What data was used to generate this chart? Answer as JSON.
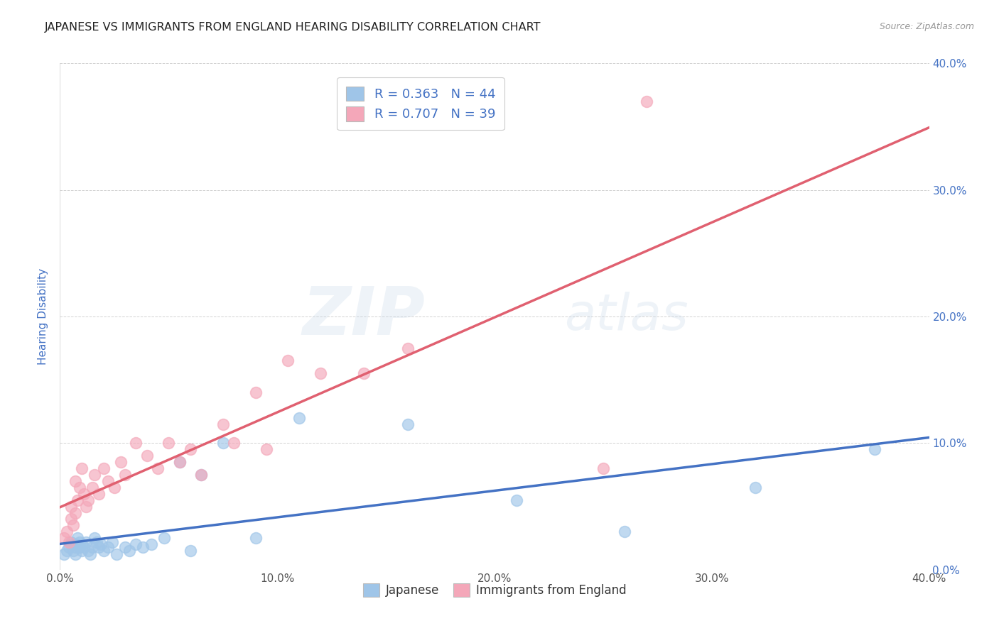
{
  "title": "JAPANESE VS IMMIGRANTS FROM ENGLAND HEARING DISABILITY CORRELATION CHART",
  "source": "Source: ZipAtlas.com",
  "ylabel": "Hearing Disability",
  "x_tick_labels": [
    "0.0%",
    "",
    "10.0%",
    "",
    "20.0%",
    "",
    "30.0%",
    "",
    "40.0%"
  ],
  "y_tick_labels_right": [
    "0.0%",
    "10.0%",
    "20.0%",
    "30.0%",
    "40.0%"
  ],
  "xlim": [
    0.0,
    0.4
  ],
  "ylim": [
    0.0,
    0.4
  ],
  "legend_label1": "Japanese",
  "legend_label2": "Immigrants from England",
  "r1": 0.363,
  "n1": 44,
  "r2": 0.707,
  "n2": 39,
  "color1": "#9fc5e8",
  "color2": "#f4a7b9",
  "trendline1_color": "#4472c4",
  "trendline2_color": "#e06070",
  "watermark_zip": "ZIP",
  "watermark_atlas": "atlas",
  "title_fontsize": 11.5,
  "label_fontsize": 11,
  "tick_fontsize": 11,
  "japanese_x": [
    0.002,
    0.003,
    0.004,
    0.005,
    0.005,
    0.006,
    0.007,
    0.007,
    0.008,
    0.008,
    0.009,
    0.009,
    0.01,
    0.01,
    0.011,
    0.012,
    0.013,
    0.014,
    0.015,
    0.016,
    0.017,
    0.018,
    0.019,
    0.02,
    0.022,
    0.024,
    0.026,
    0.03,
    0.032,
    0.035,
    0.038,
    0.042,
    0.048,
    0.055,
    0.06,
    0.065,
    0.075,
    0.09,
    0.11,
    0.16,
    0.21,
    0.26,
    0.32,
    0.375
  ],
  "japanese_y": [
    0.012,
    0.015,
    0.018,
    0.02,
    0.022,
    0.015,
    0.012,
    0.018,
    0.02,
    0.025,
    0.018,
    0.022,
    0.015,
    0.02,
    0.018,
    0.022,
    0.015,
    0.012,
    0.018,
    0.025,
    0.022,
    0.018,
    0.02,
    0.015,
    0.018,
    0.022,
    0.012,
    0.018,
    0.015,
    0.02,
    0.018,
    0.02,
    0.025,
    0.085,
    0.015,
    0.075,
    0.1,
    0.025,
    0.12,
    0.115,
    0.055,
    0.03,
    0.065,
    0.095
  ],
  "england_x": [
    0.002,
    0.003,
    0.004,
    0.005,
    0.005,
    0.006,
    0.007,
    0.007,
    0.008,
    0.009,
    0.01,
    0.011,
    0.012,
    0.013,
    0.015,
    0.016,
    0.018,
    0.02,
    0.022,
    0.025,
    0.028,
    0.03,
    0.035,
    0.04,
    0.045,
    0.05,
    0.055,
    0.06,
    0.065,
    0.075,
    0.08,
    0.09,
    0.095,
    0.105,
    0.12,
    0.14,
    0.16,
    0.25,
    0.27
  ],
  "england_y": [
    0.025,
    0.03,
    0.022,
    0.04,
    0.05,
    0.035,
    0.07,
    0.045,
    0.055,
    0.065,
    0.08,
    0.06,
    0.05,
    0.055,
    0.065,
    0.075,
    0.06,
    0.08,
    0.07,
    0.065,
    0.085,
    0.075,
    0.1,
    0.09,
    0.08,
    0.1,
    0.085,
    0.095,
    0.075,
    0.115,
    0.1,
    0.14,
    0.095,
    0.165,
    0.155,
    0.155,
    0.175,
    0.08,
    0.37
  ]
}
